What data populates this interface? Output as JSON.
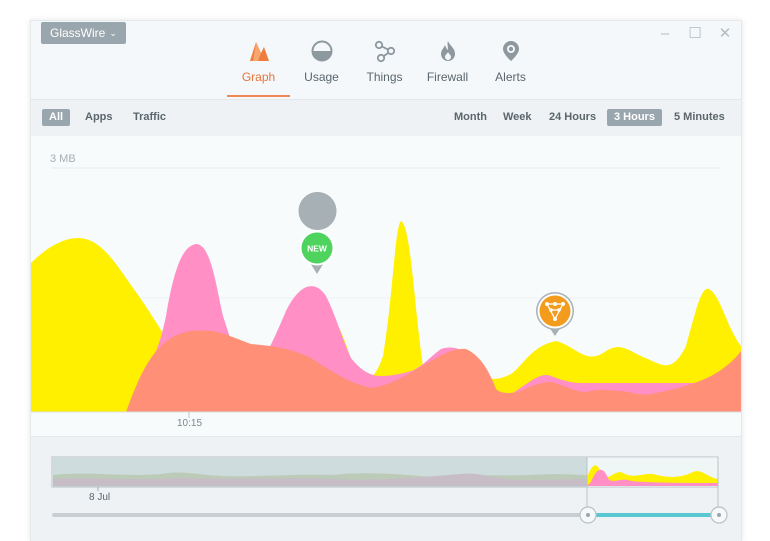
{
  "app_menu": {
    "label": "GlassWire"
  },
  "nav": {
    "items": [
      {
        "label": "Graph",
        "icon": "graph-icon",
        "active": true
      },
      {
        "label": "Usage",
        "icon": "usage-icon"
      },
      {
        "label": "Things",
        "icon": "things-icon"
      },
      {
        "label": "Firewall",
        "icon": "firewall-icon"
      },
      {
        "label": "Alerts",
        "icon": "alerts-icon"
      }
    ]
  },
  "filters": {
    "view": [
      "All",
      "Apps",
      "Traffic"
    ],
    "view_selected": "All",
    "ranges": [
      "Month",
      "Week",
      "24 Hours",
      "3 Hours",
      "5 Minutes"
    ],
    "range_selected": "3 Hours"
  },
  "graph": {
    "scale_label": "3 MB",
    "time_label": "10:15",
    "new_marker": "NEW"
  },
  "overview": {
    "date_label": "8 Jul"
  },
  "colors": {
    "accent": "#e8743b",
    "yellow_series": "#fff000",
    "pink_series": "#ff8fc5",
    "salmon_series": "#ff8f77",
    "new_badge": "#4fd35f",
    "alert_badge": "#f29b1c",
    "slider_active": "#5ac8d2"
  }
}
